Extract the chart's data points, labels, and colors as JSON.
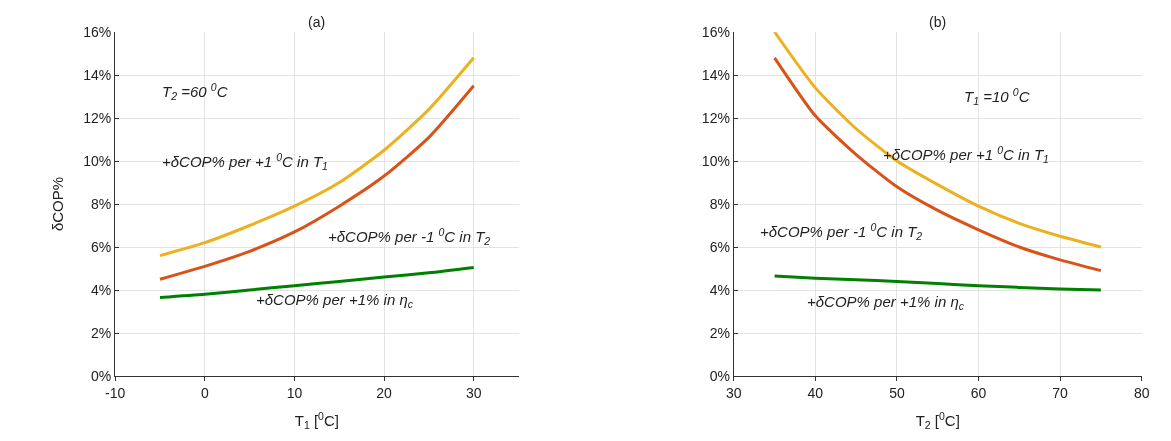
{
  "chart_data": [
    {
      "type": "line",
      "title": "(a)",
      "xlabel": "T$_{1}$ [$^{0}$C]",
      "ylabel": "δCOP%",
      "x": [
        -5,
        0,
        5,
        10,
        15,
        20,
        25,
        30
      ],
      "series": [
        {
          "color": "#edb120",
          "values": [
            5.6,
            6.2,
            7.0,
            7.9,
            9.0,
            10.5,
            12.4,
            14.8
          ]
        },
        {
          "color": "#d95319",
          "values": [
            4.5,
            5.1,
            5.8,
            6.7,
            7.9,
            9.3,
            11.1,
            13.5
          ]
        },
        {
          "color": "#008000",
          "values": [
            3.65,
            3.8,
            4.0,
            4.2,
            4.4,
            4.6,
            4.8,
            5.05
          ]
        }
      ],
      "xlim": [
        -10,
        35
      ],
      "xticks": [
        -10,
        0,
        10,
        20,
        30
      ],
      "ylim": [
        0,
        16
      ],
      "yticks": [
        {
          "value": 0,
          "label": "0%"
        },
        {
          "value": 2,
          "label": "2%"
        },
        {
          "value": 4,
          "label": "4%"
        },
        {
          "value": 6,
          "label": "6%"
        },
        {
          "value": 8,
          "label": "8%"
        },
        {
          "value": 10,
          "label": "10%"
        },
        {
          "value": 12,
          "label": "12%"
        },
        {
          "value": 14,
          "label": "14%"
        },
        {
          "value": 16,
          "label": "16%"
        }
      ],
      "grid": true,
      "annotations": [
        "T$_{2}$ =60 $^{0}$C",
        "+δCOP% per +1 $^{0}$C in T$_{1}$",
        "+δCOP% per -1 $^{0}$C in T$_{2}$",
        "+δCOP% per +1% in η$_{c}$"
      ]
    },
    {
      "type": "line",
      "title": "(b)",
      "xlabel": "T$_{2}$ [$^{0}$C]",
      "x": [
        35,
        40,
        45,
        50,
        55,
        60,
        65,
        70,
        75
      ],
      "series": [
        {
          "color": "#edb120",
          "values": [
            16.0,
            13.4,
            11.5,
            10.0,
            8.9,
            7.9,
            7.1,
            6.5,
            6.0
          ]
        },
        {
          "color": "#d95319",
          "values": [
            14.8,
            12.1,
            10.3,
            8.8,
            7.7,
            6.8,
            6.0,
            5.4,
            4.9
          ]
        },
        {
          "color": "#008000",
          "values": [
            4.65,
            4.55,
            4.48,
            4.4,
            4.3,
            4.2,
            4.12,
            4.05,
            4.0
          ]
        }
      ],
      "xlim": [
        30,
        80
      ],
      "xticks": [
        30,
        40,
        50,
        60,
        70,
        80
      ],
      "ylim": [
        0,
        16
      ],
      "yticks": [
        {
          "value": 0,
          "label": "0%"
        },
        {
          "value": 2,
          "label": "2%"
        },
        {
          "value": 4,
          "label": "4%"
        },
        {
          "value": 6,
          "label": "6%"
        },
        {
          "value": 8,
          "label": "8%"
        },
        {
          "value": 10,
          "label": "10%"
        },
        {
          "value": 12,
          "label": "12%"
        },
        {
          "value": 14,
          "label": "14%"
        },
        {
          "value": 16,
          "label": "16%"
        }
      ],
      "grid": true,
      "annotations": [
        "T$_{1}$ =10 $^{0}$C",
        "+δCOP% per +1 $^{0}$C in T$_{1}$",
        "+δCOP% per -1 $^{0}$C in T$_{2}$",
        "+δCOP% per +1% in η$_{c}$"
      ]
    }
  ]
}
